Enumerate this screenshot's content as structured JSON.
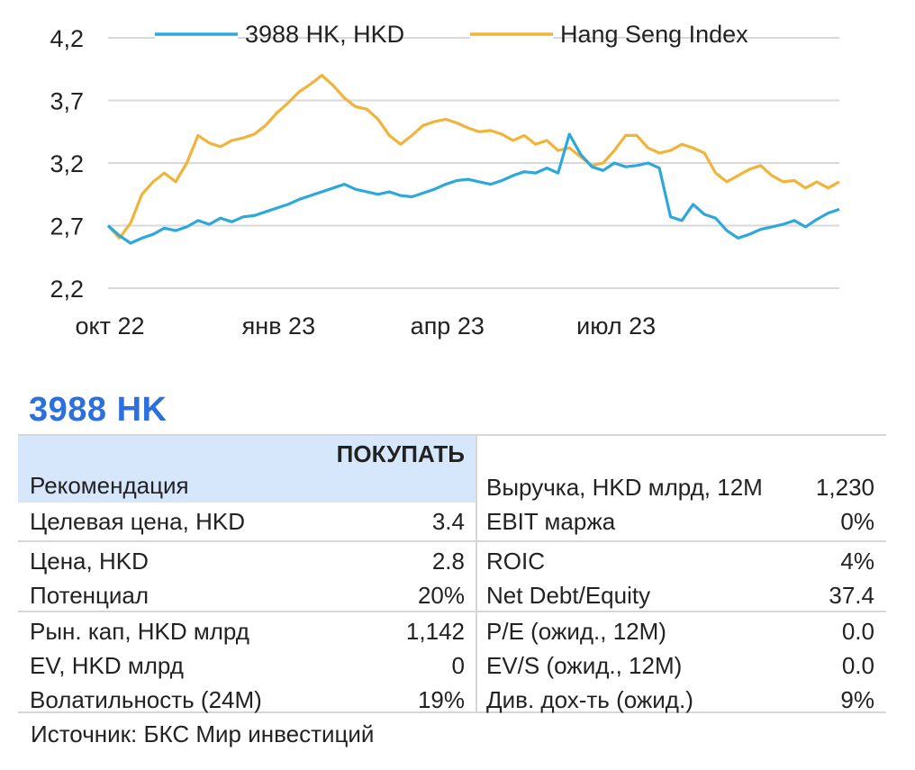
{
  "chart_data": {
    "type": "line",
    "y_ticks": [
      "4,2",
      "3,7",
      "3,2",
      "2,7",
      "2,2"
    ],
    "ylim": [
      2.2,
      4.2
    ],
    "x_ticks": [
      "окт 22",
      "янв 23",
      "апр 23",
      "июл 23"
    ],
    "x_tick_indices": [
      0,
      15,
      30,
      45
    ],
    "grid": true,
    "legend_position": "top",
    "series": [
      {
        "name": "3988 HK, HKD",
        "color": "#2ea8db",
        "values": [
          2.7,
          2.62,
          2.56,
          2.6,
          2.63,
          2.68,
          2.66,
          2.69,
          2.74,
          2.71,
          2.76,
          2.73,
          2.77,
          2.78,
          2.81,
          2.84,
          2.87,
          2.91,
          2.94,
          2.97,
          3.0,
          3.03,
          2.99,
          2.97,
          2.95,
          2.97,
          2.94,
          2.93,
          2.96,
          2.99,
          3.03,
          3.06,
          3.07,
          3.05,
          3.03,
          3.06,
          3.1,
          3.13,
          3.12,
          3.16,
          3.12,
          3.43,
          3.27,
          3.17,
          3.14,
          3.2,
          3.17,
          3.18,
          3.2,
          3.16,
          2.77,
          2.74,
          2.87,
          2.79,
          2.76,
          2.66,
          2.6,
          2.63,
          2.67,
          2.69,
          2.71,
          2.74,
          2.69,
          2.75,
          2.8,
          2.83
        ]
      },
      {
        "name": "Hang Seng Index",
        "color": "#f0b43a",
        "values": [
          2.7,
          2.6,
          2.72,
          2.95,
          3.05,
          3.12,
          3.05,
          3.2,
          3.42,
          3.36,
          3.33,
          3.38,
          3.4,
          3.43,
          3.5,
          3.6,
          3.68,
          3.77,
          3.83,
          3.9,
          3.82,
          3.72,
          3.65,
          3.63,
          3.55,
          3.42,
          3.35,
          3.42,
          3.5,
          3.53,
          3.55,
          3.52,
          3.48,
          3.45,
          3.46,
          3.43,
          3.38,
          3.42,
          3.35,
          3.38,
          3.3,
          3.32,
          3.25,
          3.18,
          3.2,
          3.3,
          3.42,
          3.42,
          3.32,
          3.28,
          3.3,
          3.35,
          3.32,
          3.28,
          3.12,
          3.05,
          3.1,
          3.15,
          3.18,
          3.1,
          3.05,
          3.06,
          3.0,
          3.05,
          3.0,
          3.05
        ]
      }
    ]
  },
  "ticker": "3988 HK",
  "metrics": {
    "recommendation": {
      "label": "Рекомендация",
      "value": "ПОКУПАТЬ"
    },
    "rows": [
      {
        "left_label": "Целевая цена, HKD",
        "left_value": "3.4",
        "right_label": "EBIT маржа",
        "right_value": "0%"
      },
      {
        "left_label": "Цена, HKD",
        "left_value": "2.8",
        "right_label": "ROIC",
        "right_value": "4%"
      },
      {
        "left_label": "Потенциал",
        "left_value": "20%",
        "right_label": "Net Debt/Equity",
        "right_value": "37.4"
      },
      {
        "left_label": "Рын. кап, HKD млрд",
        "left_value": "1,142",
        "right_label": "P/E (ожид., 12M)",
        "right_value": "0.0"
      },
      {
        "left_label": "EV, HKD млрд",
        "left_value": "0",
        "right_label": "EV/S (ожид., 12M)",
        "right_value": "0.0"
      },
      {
        "left_label": "Волатильность (24M)",
        "left_value": "19%",
        "right_label": "Див. дох-ть (ожид.)",
        "right_value": "9%"
      }
    ],
    "revenue": {
      "label": "Выручка, HKD млрд, 12M",
      "value": "1,230"
    }
  },
  "source": "Источник: БКС Мир инвестиций"
}
